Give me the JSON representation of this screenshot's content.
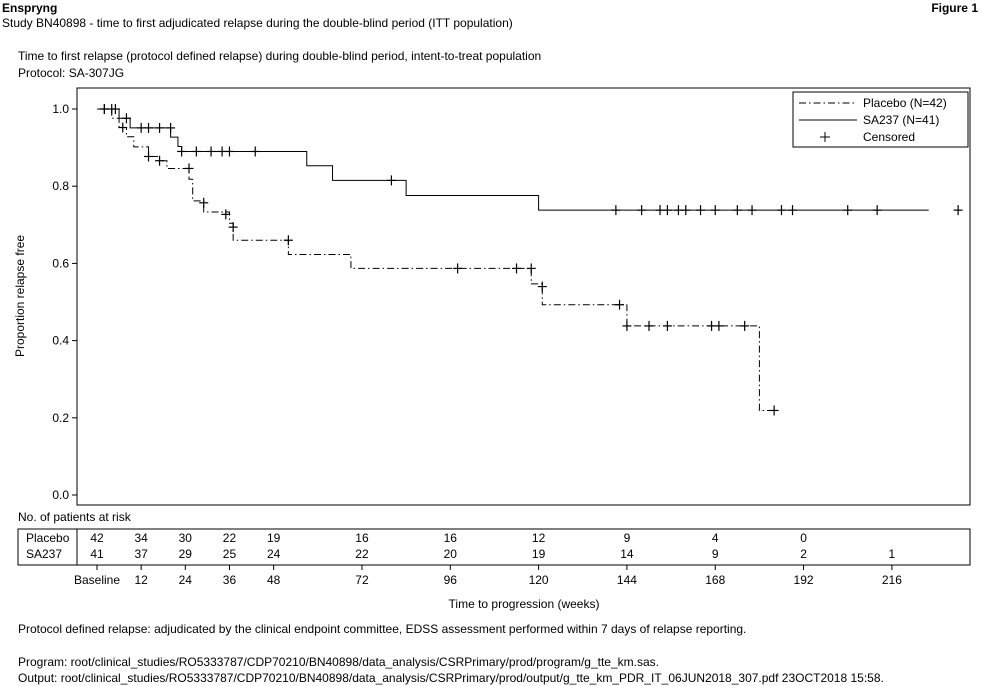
{
  "header": {
    "product": "Enspryng",
    "figure_label": "Figure 1",
    "study_title": "Study BN40898 - time to first adjudicated relapse during the double-blind period (ITT population)"
  },
  "plot_title": {
    "line1": "Time to first relapse (protocol defined relapse) during double-blind period, intent-to-treat population",
    "line2": "Protocol: SA-307JG"
  },
  "chart_data": {
    "type": "line",
    "subtype": "kaplan-meier",
    "xlabel": "Time to progression (weeks)",
    "ylabel": "Proportion relapse free",
    "xlim": [
      0,
      225
    ],
    "ylim": [
      0,
      1
    ],
    "x_ticks": [
      0,
      12,
      24,
      36,
      48,
      72,
      96,
      120,
      144,
      168,
      192,
      216
    ],
    "x_tick_labels": [
      "Baseline",
      "12",
      "24",
      "36",
      "48",
      "72",
      "96",
      "120",
      "144",
      "168",
      "192",
      "216"
    ],
    "y_ticks": [
      0,
      0.2,
      0.4,
      0.6,
      0.8,
      1.0
    ],
    "y_tick_labels": [
      "0.0",
      "0.2",
      "0.4",
      "0.6",
      "0.8",
      "1.0"
    ],
    "grid": false,
    "legend_position": "top-right",
    "legend": [
      "Placebo (N=42)",
      "SA237 (N=41)",
      "Censored"
    ],
    "series": [
      {
        "name": "Placebo (N=42)",
        "line_style": "dash-dot",
        "steps": [
          [
            0,
            1.0
          ],
          [
            4,
            0.976
          ],
          [
            6,
            0.952
          ],
          [
            8,
            0.928
          ],
          [
            10,
            0.902
          ],
          [
            14,
            0.877
          ],
          [
            17,
            0.866
          ],
          [
            19,
            0.846
          ],
          [
            25,
            0.818
          ],
          [
            26,
            0.762
          ],
          [
            29,
            0.733
          ],
          [
            36,
            0.704
          ],
          [
            37,
            0.66
          ],
          [
            52,
            0.623
          ],
          [
            69,
            0.587
          ],
          [
            118,
            0.547
          ],
          [
            121,
            0.493
          ],
          [
            144,
            0.438
          ],
          [
            180,
            0.219
          ]
        ],
        "end_x": 184,
        "censored": [
          [
            2,
            1.0
          ],
          [
            4,
            1.0
          ],
          [
            7,
            0.952
          ],
          [
            14,
            0.877
          ],
          [
            17,
            0.866
          ],
          [
            25,
            0.846
          ],
          [
            29,
            0.757
          ],
          [
            35,
            0.727
          ],
          [
            37,
            0.694
          ],
          [
            52,
            0.66
          ],
          [
            98,
            0.587
          ],
          [
            114,
            0.587
          ],
          [
            118,
            0.587
          ],
          [
            121,
            0.54
          ],
          [
            142,
            0.493
          ],
          [
            144,
            0.438
          ],
          [
            150,
            0.438
          ],
          [
            155,
            0.438
          ],
          [
            167,
            0.438
          ],
          [
            169,
            0.438
          ],
          [
            176,
            0.438
          ],
          [
            184,
            0.219
          ]
        ]
      },
      {
        "name": "SA237 (N=41)",
        "line_style": "solid",
        "steps": [
          [
            0,
            1.0
          ],
          [
            6,
            0.976
          ],
          [
            9,
            0.951
          ],
          [
            20,
            0.927
          ],
          [
            22,
            0.903
          ],
          [
            23,
            0.89
          ],
          [
            57,
            0.853
          ],
          [
            64,
            0.815
          ],
          [
            84,
            0.776
          ],
          [
            120,
            0.738
          ]
        ],
        "end_x": 226,
        "censored": [
          [
            2,
            1.0
          ],
          [
            5,
            1.0
          ],
          [
            8,
            0.976
          ],
          [
            12,
            0.951
          ],
          [
            14,
            0.951
          ],
          [
            17,
            0.951
          ],
          [
            20,
            0.951
          ],
          [
            23,
            0.89
          ],
          [
            27,
            0.89
          ],
          [
            31,
            0.89
          ],
          [
            34,
            0.89
          ],
          [
            36,
            0.89
          ],
          [
            43,
            0.89
          ],
          [
            80,
            0.815
          ],
          [
            141,
            0.738
          ],
          [
            148,
            0.738
          ],
          [
            153,
            0.738
          ],
          [
            155,
            0.738
          ],
          [
            158,
            0.738
          ],
          [
            160,
            0.738
          ],
          [
            164,
            0.738
          ],
          [
            168,
            0.738
          ],
          [
            174,
            0.738
          ],
          [
            178,
            0.738
          ],
          [
            186,
            0.738
          ],
          [
            189,
            0.738
          ],
          [
            204,
            0.738
          ],
          [
            212,
            0.738
          ],
          [
            234,
            0.738
          ]
        ]
      }
    ],
    "risk_table": {
      "title": "No. of patients at risk",
      "times": [
        0,
        12,
        24,
        36,
        48,
        72,
        96,
        120,
        144,
        168,
        192,
        216
      ],
      "rows": [
        {
          "label": "Placebo",
          "values": [
            "42",
            "34",
            "30",
            "22",
            "19",
            "16",
            "16",
            "12",
            "9",
            "4",
            "0",
            ""
          ]
        },
        {
          "label": "SA237",
          "values": [
            "41",
            "37",
            "29",
            "25",
            "24",
            "22",
            "20",
            "19",
            "14",
            "9",
            "2",
            "1"
          ]
        }
      ]
    }
  },
  "footer": {
    "note": "Protocol defined relapse: adjudicated by the clinical endpoint committee, EDSS assessment performed within 7 days of relapse reporting.",
    "program": "Program: root/clinical_studies/RO5333787/CDP70210/BN40898/data_analysis/CSRPrimary/prod/program/g_tte_km.sas.",
    "output": "Output: root/clinical_studies/RO5333787/CDP70210/BN40898/data_analysis/CSRPrimary/prod/output/g_tte_km_PDR_IT_06JUN2018_307.pdf 23OCT2018 15:58."
  }
}
